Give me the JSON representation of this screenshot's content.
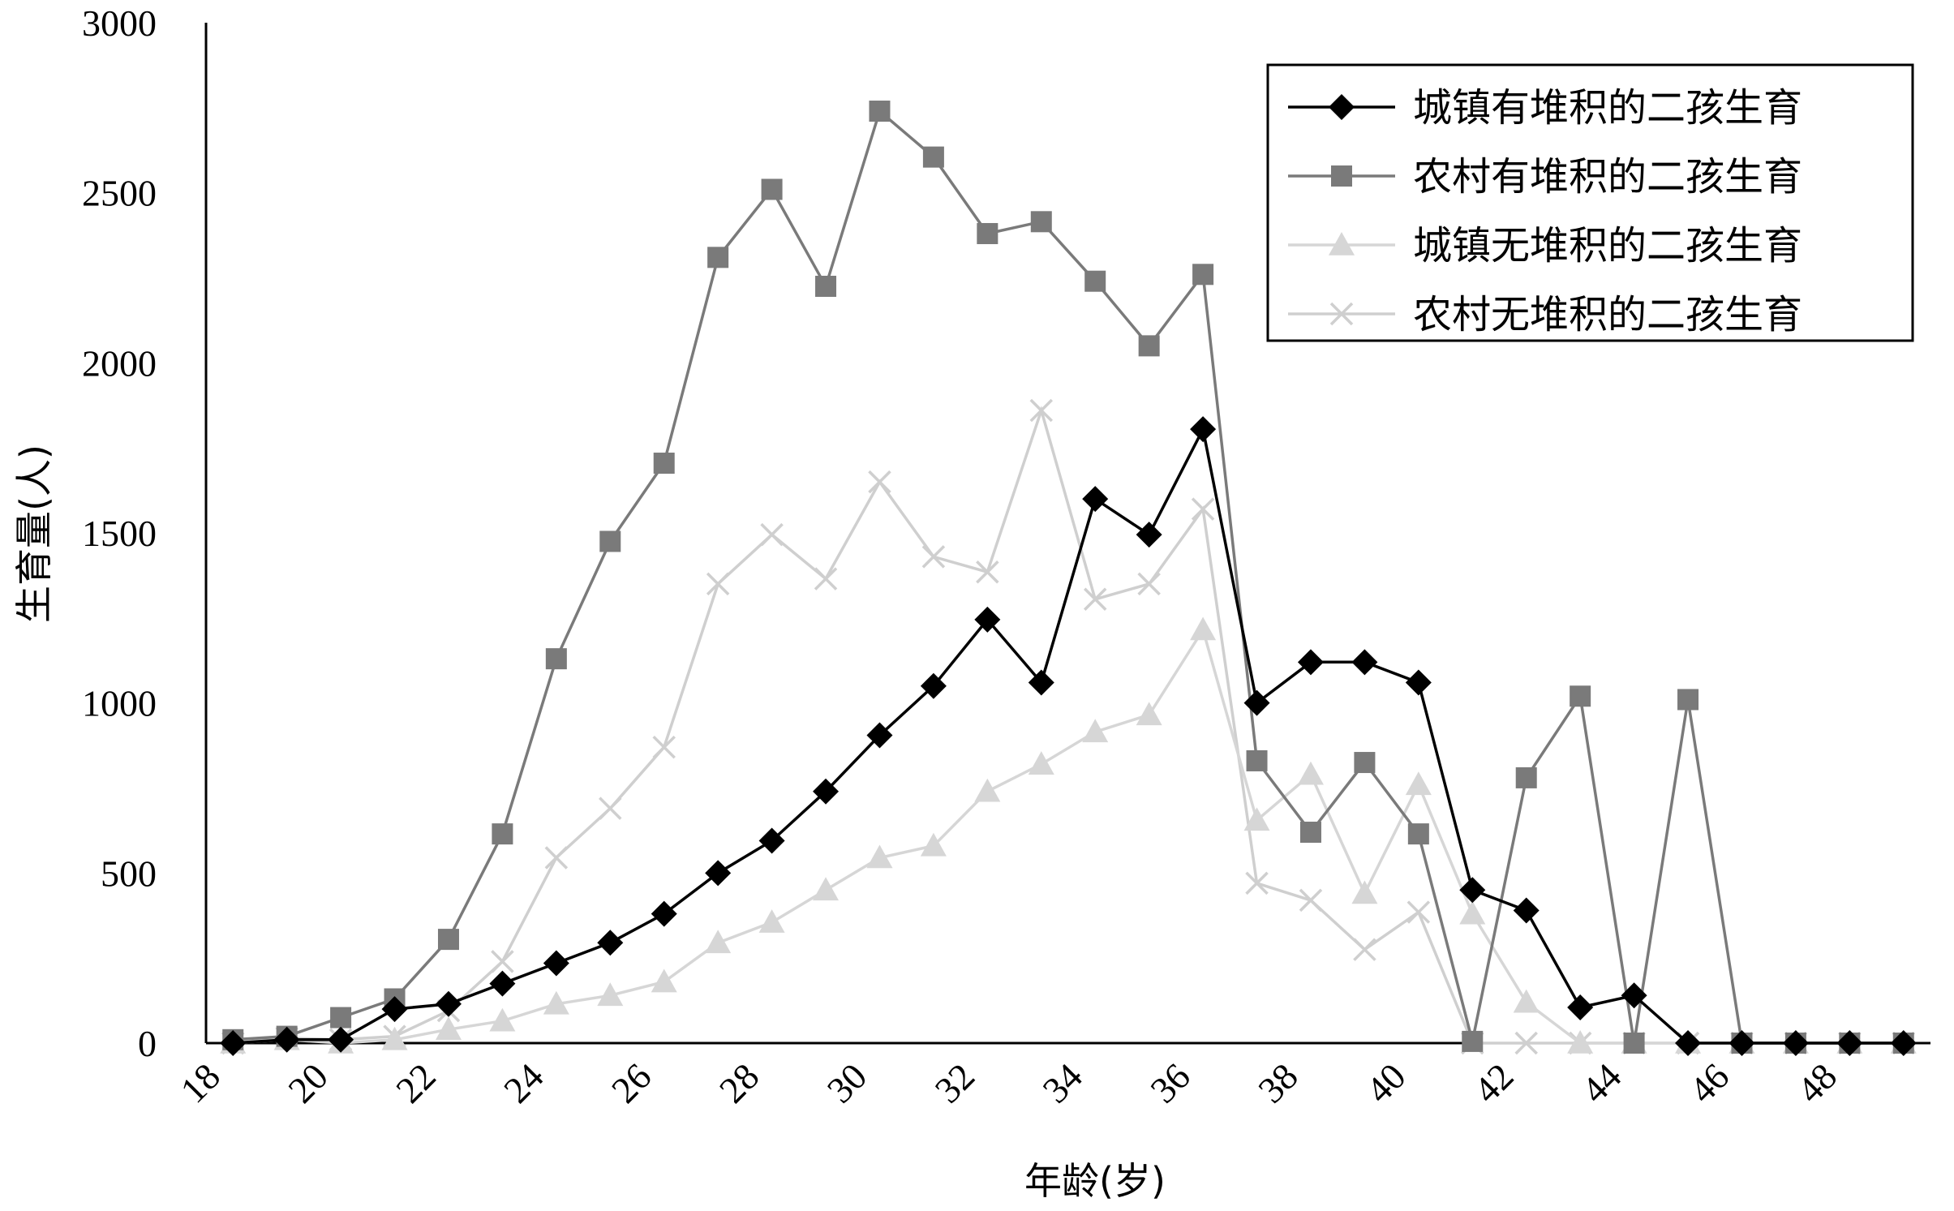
{
  "chart_data": {
    "type": "line",
    "xlabel": "年龄(岁)",
    "ylabel": "生育量(人)",
    "ylim": [
      0,
      3000
    ],
    "xlim": [
      18,
      50
    ],
    "y_ticks": [
      "0",
      "500",
      "1000",
      "1500",
      "2000",
      "2500",
      "3000"
    ],
    "x_ticks": [
      "18",
      "20",
      "22",
      "24",
      "26",
      "28",
      "30",
      "32",
      "34",
      "36",
      "38",
      "40",
      "42",
      "44",
      "46",
      "48"
    ],
    "x": [
      18.5,
      19.5,
      20.5,
      21.5,
      22.5,
      23.5,
      24.5,
      25.5,
      26.5,
      27.5,
      28.5,
      29.5,
      30.5,
      31.5,
      32.5,
      33.5,
      34.5,
      35.5,
      36.5,
      37.5,
      38.5,
      39.5,
      40.5,
      41.5,
      42.5,
      43.5,
      44.5,
      45.5,
      46.5,
      47.5,
      48.5,
      49.5
    ],
    "legend_position": "top-right",
    "grid": false,
    "series": [
      {
        "name": "城镇有堆积的二孩生育",
        "marker": "diamond",
        "color": "#000000",
        "values": [
          0,
          10,
          10,
          100,
          115,
          175,
          235,
          295,
          380,
          500,
          595,
          740,
          905,
          1050,
          1245,
          1060,
          1600,
          1495,
          1805,
          1000,
          1120,
          1120,
          1060,
          450,
          390,
          105,
          140,
          0,
          0,
          0,
          0,
          0
        ]
      },
      {
        "name": "农村有堆积的二孩生育",
        "marker": "square",
        "color": "#7a7a7a",
        "values": [
          10,
          20,
          75,
          130,
          305,
          615,
          1130,
          1475,
          1705,
          2310,
          2510,
          2225,
          2740,
          2605,
          2380,
          2415,
          2240,
          2050,
          2260,
          830,
          620,
          825,
          615,
          5,
          780,
          1020,
          0,
          1010,
          0,
          0,
          0,
          0
        ]
      },
      {
        "name": "城镇无堆积的二孩生育",
        "marker": "triangle",
        "color": "#d6d6d6",
        "values": [
          0,
          10,
          0,
          10,
          40,
          65,
          115,
          140,
          180,
          295,
          355,
          450,
          545,
          580,
          740,
          820,
          915,
          965,
          1215,
          655,
          790,
          440,
          760,
          380,
          120,
          0,
          0,
          0,
          0,
          0,
          0,
          0
        ]
      },
      {
        "name": "农村无堆积的二孩生育",
        "marker": "x",
        "color": "#cfcfcf",
        "values": [
          0,
          15,
          10,
          20,
          95,
          240,
          545,
          690,
          870,
          1350,
          1495,
          1365,
          1650,
          1430,
          1385,
          1860,
          1305,
          1350,
          1570,
          470,
          420,
          275,
          385,
          0,
          0,
          0,
          0,
          0,
          0,
          0,
          0,
          0
        ]
      }
    ]
  }
}
